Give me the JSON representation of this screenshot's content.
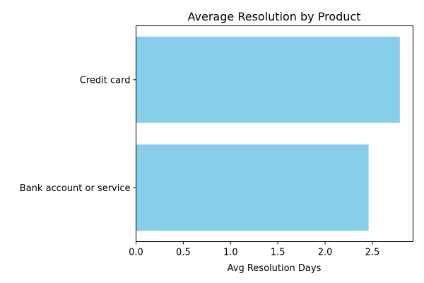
{
  "chart_data": {
    "type": "bar",
    "orientation": "horizontal",
    "title": "Average Resolution by Product",
    "xlabel": "Avg Resolution Days",
    "ylabel": "",
    "categories": [
      "Credit card",
      "Bank account or service"
    ],
    "values": [
      2.79,
      2.46
    ],
    "xlim": [
      0,
      2.93
    ],
    "xticks": [
      0.0,
      0.5,
      1.0,
      1.5,
      2.0,
      2.5
    ],
    "xtick_labels": [
      "0.0",
      "0.5",
      "1.0",
      "1.5",
      "2.0",
      "2.5"
    ],
    "bar_color": "#87ceeb",
    "grid": false,
    "legend": "none"
  }
}
